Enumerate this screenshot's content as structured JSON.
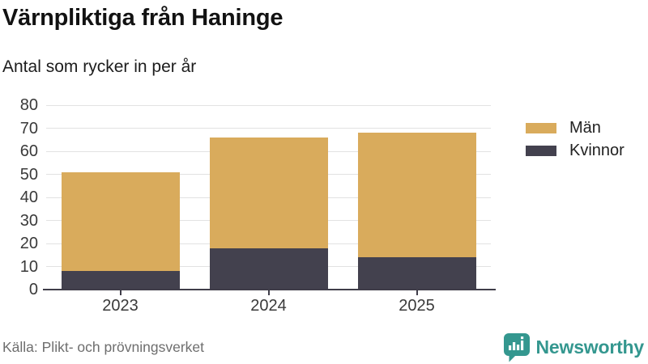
{
  "title": "Värnpliktiga från Haninge",
  "subtitle": "Antal som rycker in per år",
  "chart_data": {
    "type": "bar",
    "stacked": true,
    "title": "Värnpliktiga från Haninge",
    "subtitle": "Antal som rycker in per år",
    "categories": [
      "2023",
      "2024",
      "2025"
    ],
    "series": [
      {
        "name": "Kvinnor",
        "color": "#43414e",
        "values": [
          8,
          18,
          14
        ]
      },
      {
        "name": "Män",
        "color": "#d9ab5c",
        "values": [
          43,
          48,
          54
        ]
      }
    ],
    "totals": [
      51,
      66,
      68
    ],
    "xlabel": "",
    "ylabel": "",
    "ylim": [
      0,
      80
    ],
    "ytick_step": 10,
    "yticks": [
      0,
      10,
      20,
      30,
      40,
      50,
      60,
      70,
      80
    ],
    "grid": true,
    "legend_position": "right",
    "legend_order": [
      "Män",
      "Kvinnor"
    ]
  },
  "footer": {
    "source": "Källa: Plikt- och prövningsverket"
  },
  "branding": {
    "logo_text": "Newsworthy",
    "logo_icon": "bar-chart-speech-bubble-icon",
    "logo_color": "#34978F"
  },
  "colors": {
    "background": "#ffffff",
    "gridline": "#e2e2e2",
    "axis": "#3f3d49",
    "men": "#d9ab5c",
    "women": "#43414e",
    "title_text": "#121212",
    "muted_text": "#6e6e6e"
  }
}
